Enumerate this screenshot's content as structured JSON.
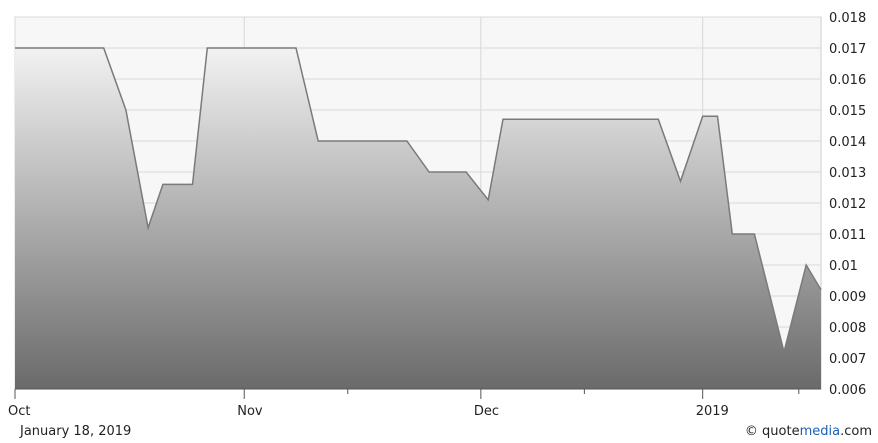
{
  "chart_data": {
    "type": "area",
    "title": "",
    "xlabel": "",
    "ylabel": "",
    "ylim": [
      0.006,
      0.018
    ],
    "yticks": [
      "0.018",
      "0.017",
      "0.016",
      "0.015",
      "0.014",
      "0.013",
      "0.012",
      "0.011",
      "0.01",
      "0.009",
      "0.008",
      "0.007",
      "0.006"
    ],
    "x_range": [
      "2018-10-01",
      "2019-01-18"
    ],
    "xticks": [
      {
        "label": "Oct",
        "date": "2018-10-01"
      },
      {
        "label": "Nov",
        "date": "2018-11-01"
      },
      {
        "label": "Dec",
        "date": "2018-12-03"
      },
      {
        "label": "2019",
        "date": "2019-01-02"
      }
    ],
    "minor_xticks": [
      "2018-11-15",
      "2018-12-17",
      "2019-01-15"
    ],
    "grid": true,
    "colors": {
      "line": "#7a7a7a",
      "fill_top": "#f2f2f2",
      "fill_bottom": "#6a6a6a",
      "grid": "#d8d8d8"
    },
    "series": [
      {
        "x": [
          "2018-10-01",
          "2018-10-13",
          "2018-10-16",
          "2018-10-19",
          "2018-10-21",
          "2018-10-25",
          "2018-10-27",
          "2018-10-28",
          "2018-11-08",
          "2018-11-11",
          "2018-11-23",
          "2018-11-26",
          "2018-12-01",
          "2018-12-04",
          "2018-12-06",
          "2018-12-27",
          "2018-12-30",
          "2019-01-02",
          "2019-01-04",
          "2019-01-06",
          "2019-01-09",
          "2019-01-13",
          "2019-01-16",
          "2019-01-18"
        ],
        "values": [
          0.017,
          0.017,
          0.015,
          0.0112,
          0.0126,
          0.0126,
          0.017,
          0.017,
          0.017,
          0.014,
          0.014,
          0.013,
          0.013,
          0.0121,
          0.0147,
          0.0147,
          0.0127,
          0.0148,
          0.0148,
          0.011,
          0.011,
          0.0072,
          0.01,
          0.0092
        ]
      }
    ]
  },
  "footer": {
    "date_label": "January 18, 2019",
    "copyright_symbol": "©",
    "brand_prefix": "quote",
    "brand_media": "media",
    "brand_suffix": ".com"
  }
}
